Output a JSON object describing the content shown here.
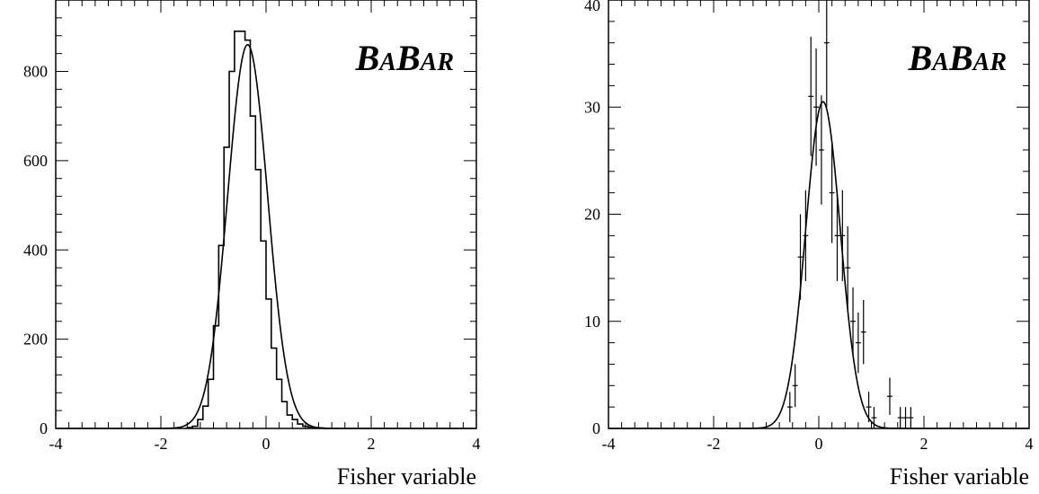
{
  "logo_text": {
    "big1": "B",
    "small1": "A",
    "big2": "B",
    "small2": "AR"
  },
  "chart_data": [
    {
      "type": "bar",
      "panel": "left",
      "xlabel": "Fisher variable",
      "xlim": [
        -4,
        4
      ],
      "ylim": [
        0,
        960
      ],
      "x_ticks": [
        -4,
        -2,
        0,
        2,
        4
      ],
      "y_ticks": [
        0,
        200,
        400,
        600,
        800
      ],
      "bin_width": 0.1,
      "bin_low_edges": [
        -1.5,
        -1.4,
        -1.3,
        -1.2,
        -1.1,
        -1.0,
        -0.9,
        -0.8,
        -0.7,
        -0.6,
        -0.5,
        -0.4,
        -0.3,
        -0.2,
        -0.1,
        0.0,
        0.1,
        0.2,
        0.3,
        0.4,
        0.5,
        0.6,
        0.7,
        0.8,
        0.9,
        1.0,
        1.1
      ],
      "values": [
        2,
        5,
        20,
        50,
        110,
        230,
        410,
        630,
        800,
        890,
        890,
        870,
        700,
        580,
        420,
        290,
        180,
        110,
        60,
        30,
        20,
        10,
        5,
        3,
        2,
        1,
        0
      ],
      "fit": {
        "shape": "gaussian",
        "mean": -0.35,
        "sigma": 0.38,
        "amplitude": 860
      },
      "grid": false,
      "legend": "none"
    },
    {
      "type": "scatter",
      "panel": "right",
      "xlabel": "Fisher variable",
      "xlim": [
        -4,
        4
      ],
      "ylim": [
        0,
        40
      ],
      "x_ticks": [
        -4,
        -2,
        0,
        2,
        4
      ],
      "y_ticks": [
        0,
        10,
        20,
        30,
        40
      ],
      "points": [
        {
          "x": -0.55,
          "y": 2
        },
        {
          "x": -0.45,
          "y": 4
        },
        {
          "x": -0.35,
          "y": 16
        },
        {
          "x": -0.25,
          "y": 18
        },
        {
          "x": -0.15,
          "y": 31
        },
        {
          "x": -0.05,
          "y": 30
        },
        {
          "x": 0.05,
          "y": 26
        },
        {
          "x": 0.15,
          "y": 36
        },
        {
          "x": 0.25,
          "y": 22
        },
        {
          "x": 0.35,
          "y": 18
        },
        {
          "x": 0.45,
          "y": 18
        },
        {
          "x": 0.55,
          "y": 15
        },
        {
          "x": 0.65,
          "y": 10
        },
        {
          "x": 0.75,
          "y": 8
        },
        {
          "x": 0.85,
          "y": 9
        },
        {
          "x": 0.95,
          "y": 2
        },
        {
          "x": 1.05,
          "y": 1
        },
        {
          "x": 1.35,
          "y": 3
        },
        {
          "x": 1.55,
          "y": 1
        },
        {
          "x": 1.65,
          "y": 1
        },
        {
          "x": 1.75,
          "y": 1
        }
      ],
      "fit": {
        "shape": "gaussian",
        "mean": 0.08,
        "sigma": 0.33,
        "amplitude": 30.5
      },
      "grid": false,
      "legend": "none"
    }
  ]
}
